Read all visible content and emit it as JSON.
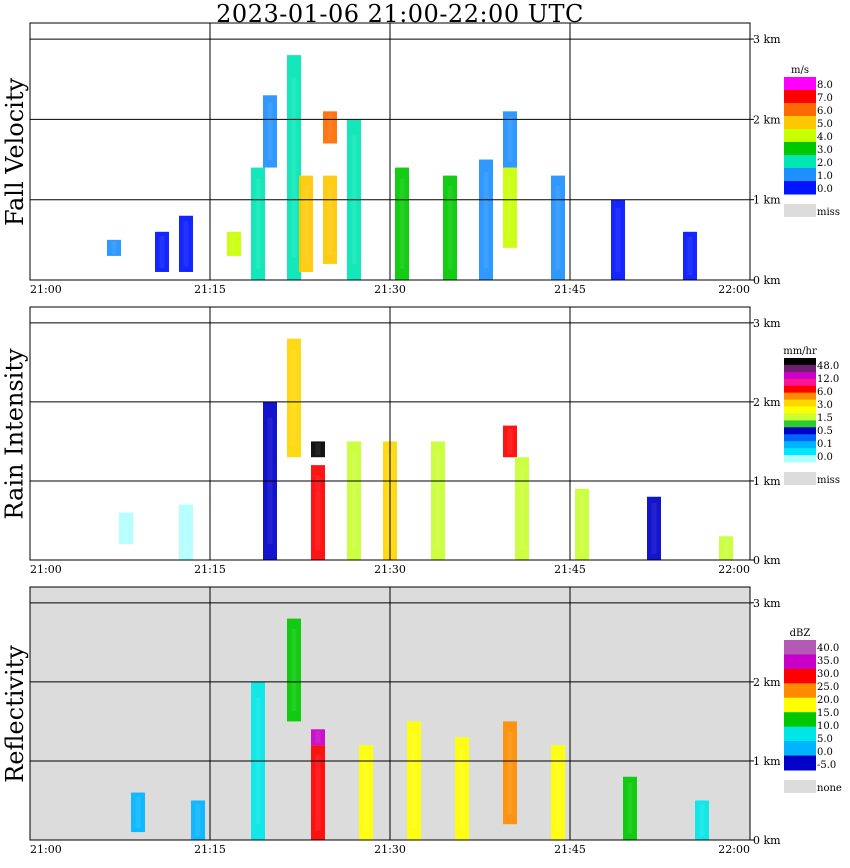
{
  "title": "2023-01-06  21:00-22:00 UTC",
  "chart_data": [
    {
      "type": "heatmap",
      "ylabel": "Fall Velocity",
      "x_tick_labels": [
        "21:00",
        "21:15",
        "21:30",
        "21:45",
        "22:00"
      ],
      "y_tick_labels": [
        "0 km",
        "1 km",
        "2 km",
        "3 km"
      ],
      "xlim": [
        "21:00",
        "22:00"
      ],
      "ylim_km": [
        0,
        3.2
      ],
      "grid": true,
      "background": "#ffffff",
      "legend": {
        "unit": "m/s",
        "labels": [
          "8.0",
          "7.0",
          "6.0",
          "5.0",
          "4.0",
          "3.0",
          "2.0",
          "1.0",
          "0.0"
        ],
        "colors": [
          "#ff00ff",
          "#ff0000",
          "#ff6a00",
          "#ffc800",
          "#c8ff00",
          "#00c800",
          "#00e6b4",
          "#1e90ff",
          "#0014ff"
        ],
        "missing_label": "miss",
        "missing_color": "#dcdcdc"
      },
      "features": [
        {
          "x": "21:07",
          "y0": 0.3,
          "y1": 0.5,
          "value": 1.0
        },
        {
          "x": "21:11",
          "y0": 0.1,
          "y1": 0.6,
          "value": 0.5
        },
        {
          "x": "21:13",
          "y0": 0.1,
          "y1": 0.8,
          "value": 0.8
        },
        {
          "x": "21:17",
          "y0": 0.3,
          "y1": 0.6,
          "value": 4.0
        },
        {
          "x": "21:19",
          "y0": 0.0,
          "y1": 1.4,
          "value": 2.0
        },
        {
          "x": "21:20",
          "y0": 1.4,
          "y1": 2.3,
          "value": 1.0
        },
        {
          "x": "21:22",
          "y0": 0.0,
          "y1": 2.8,
          "value": 2.5
        },
        {
          "x": "21:23",
          "y0": 0.1,
          "y1": 1.3,
          "value": 5.0
        },
        {
          "x": "21:25",
          "y0": 0.2,
          "y1": 1.3,
          "value": 5.0
        },
        {
          "x": "21:25",
          "y0": 1.7,
          "y1": 2.1,
          "value": 6.0
        },
        {
          "x": "21:27",
          "y0": 0.0,
          "y1": 2.0,
          "value": 2.5
        },
        {
          "x": "21:31",
          "y0": 0.0,
          "y1": 1.4,
          "value": 3.0
        },
        {
          "x": "21:35",
          "y0": 0.0,
          "y1": 1.3,
          "value": 3.0
        },
        {
          "x": "21:38",
          "y0": 0.0,
          "y1": 1.5,
          "value": 1.5
        },
        {
          "x": "21:40",
          "y0": 0.4,
          "y1": 1.4,
          "value": 4.5
        },
        {
          "x": "21:40",
          "y0": 1.4,
          "y1": 2.1,
          "value": 1.0
        },
        {
          "x": "21:44",
          "y0": 0.0,
          "y1": 1.3,
          "value": 1.5
        },
        {
          "x": "21:49",
          "y0": 0.0,
          "y1": 1.0,
          "value": 0.5
        },
        {
          "x": "21:55",
          "y0": 0.0,
          "y1": 0.6,
          "value": 0.5
        }
      ]
    },
    {
      "type": "heatmap",
      "ylabel": "Rain Intensity",
      "x_tick_labels": [
        "21:00",
        "21:15",
        "21:30",
        "21:45",
        "22:00"
      ],
      "y_tick_labels": [
        "0 km",
        "1 km",
        "2 km",
        "3 km"
      ],
      "xlim": [
        "21:00",
        "22:00"
      ],
      "ylim_km": [
        0,
        3.2
      ],
      "grid": true,
      "background": "#ffffff",
      "legend": {
        "unit": "mm/hr",
        "labels": [
          "48.0",
          "12.0",
          "6.0",
          "3.0",
          "1.5",
          "0.5",
          "0.1",
          "0.0"
        ],
        "colors": [
          "#000000",
          "#6e1e6e",
          "#c800c8",
          "#ff1493",
          "#ff0000",
          "#ff8c00",
          "#ffd700",
          "#ffff00",
          "#c8ff32",
          "#32c832",
          "#0000c8",
          "#0064ff",
          "#00b4ff",
          "#00e6ff",
          "#afffff"
        ],
        "missing_label": "miss",
        "missing_color": "#dcdcdc"
      },
      "features": [
        {
          "x": "21:08",
          "y0": 0.2,
          "y1": 0.6,
          "value": 0.05
        },
        {
          "x": "21:13",
          "y0": 0.0,
          "y1": 0.7,
          "value": 0.05
        },
        {
          "x": "21:20",
          "y0": 0.0,
          "y1": 2.0,
          "value": 0.5
        },
        {
          "x": "21:22",
          "y0": 1.3,
          "y1": 2.8,
          "value": 3.0
        },
        {
          "x": "21:24",
          "y0": 0.0,
          "y1": 1.2,
          "value": 6.0
        },
        {
          "x": "21:24",
          "y0": 1.3,
          "y1": 1.5,
          "value": 48.0
        },
        {
          "x": "21:27",
          "y0": 0.0,
          "y1": 1.5,
          "value": 1.5
        },
        {
          "x": "21:30",
          "y0": 0.0,
          "y1": 1.5,
          "value": 3.0
        },
        {
          "x": "21:34",
          "y0": 0.0,
          "y1": 1.5,
          "value": 1.5
        },
        {
          "x": "21:40",
          "y0": 1.3,
          "y1": 1.7,
          "value": 6.0
        },
        {
          "x": "21:41",
          "y0": 0.0,
          "y1": 1.3,
          "value": 1.5
        },
        {
          "x": "21:46",
          "y0": 0.0,
          "y1": 0.9,
          "value": 1.5
        },
        {
          "x": "21:52",
          "y0": 0.0,
          "y1": 0.8,
          "value": 0.5
        },
        {
          "x": "21:58",
          "y0": 0.0,
          "y1": 0.3,
          "value": 1.5
        }
      ]
    },
    {
      "type": "heatmap",
      "ylabel": "Reflectivity",
      "x_tick_labels": [
        "21:00",
        "21:15",
        "21:30",
        "21:45",
        "22:00"
      ],
      "y_tick_labels": [
        "0 km",
        "1 km",
        "2 km",
        "3 km"
      ],
      "xlim": [
        "21:00",
        "22:00"
      ],
      "ylim_km": [
        0,
        3.2
      ],
      "grid": true,
      "background": "#dcdcdc",
      "legend": {
        "unit": "dBZ",
        "labels": [
          "40.0",
          "35.0",
          "30.0",
          "25.0",
          "20.0",
          "15.0",
          "10.0",
          "5.0",
          "0.0",
          "-5.0"
        ],
        "colors": [
          "#b45ab4",
          "#c800c8",
          "#ff0000",
          "#ff8c00",
          "#ffff00",
          "#00c800",
          "#00e6e6",
          "#00b4ff",
          "#0000c8"
        ],
        "missing_label": "none",
        "missing_color": "#dcdcdc"
      },
      "features": [
        {
          "x": "21:09",
          "y0": 0.1,
          "y1": 0.6,
          "value": 3.0
        },
        {
          "x": "21:14",
          "y0": 0.0,
          "y1": 0.5,
          "value": 0.0
        },
        {
          "x": "21:19",
          "y0": 0.0,
          "y1": 2.0,
          "value": 8.0
        },
        {
          "x": "21:22",
          "y0": 1.5,
          "y1": 2.8,
          "value": 12.0
        },
        {
          "x": "21:24",
          "y0": 0.0,
          "y1": 1.2,
          "value": 32.0
        },
        {
          "x": "21:24",
          "y0": 1.2,
          "y1": 1.4,
          "value": 38.0
        },
        {
          "x": "21:28",
          "y0": 0.0,
          "y1": 1.2,
          "value": 18.0
        },
        {
          "x": "21:32",
          "y0": 0.0,
          "y1": 1.5,
          "value": 22.0
        },
        {
          "x": "21:36",
          "y0": 0.0,
          "y1": 1.3,
          "value": 18.0
        },
        {
          "x": "21:40",
          "y0": 0.2,
          "y1": 1.5,
          "value": 25.0
        },
        {
          "x": "21:44",
          "y0": 0.0,
          "y1": 1.2,
          "value": 15.0
        },
        {
          "x": "21:50",
          "y0": 0.0,
          "y1": 0.8,
          "value": 10.0
        },
        {
          "x": "21:56",
          "y0": 0.0,
          "y1": 0.5,
          "value": 5.0
        }
      ]
    }
  ]
}
